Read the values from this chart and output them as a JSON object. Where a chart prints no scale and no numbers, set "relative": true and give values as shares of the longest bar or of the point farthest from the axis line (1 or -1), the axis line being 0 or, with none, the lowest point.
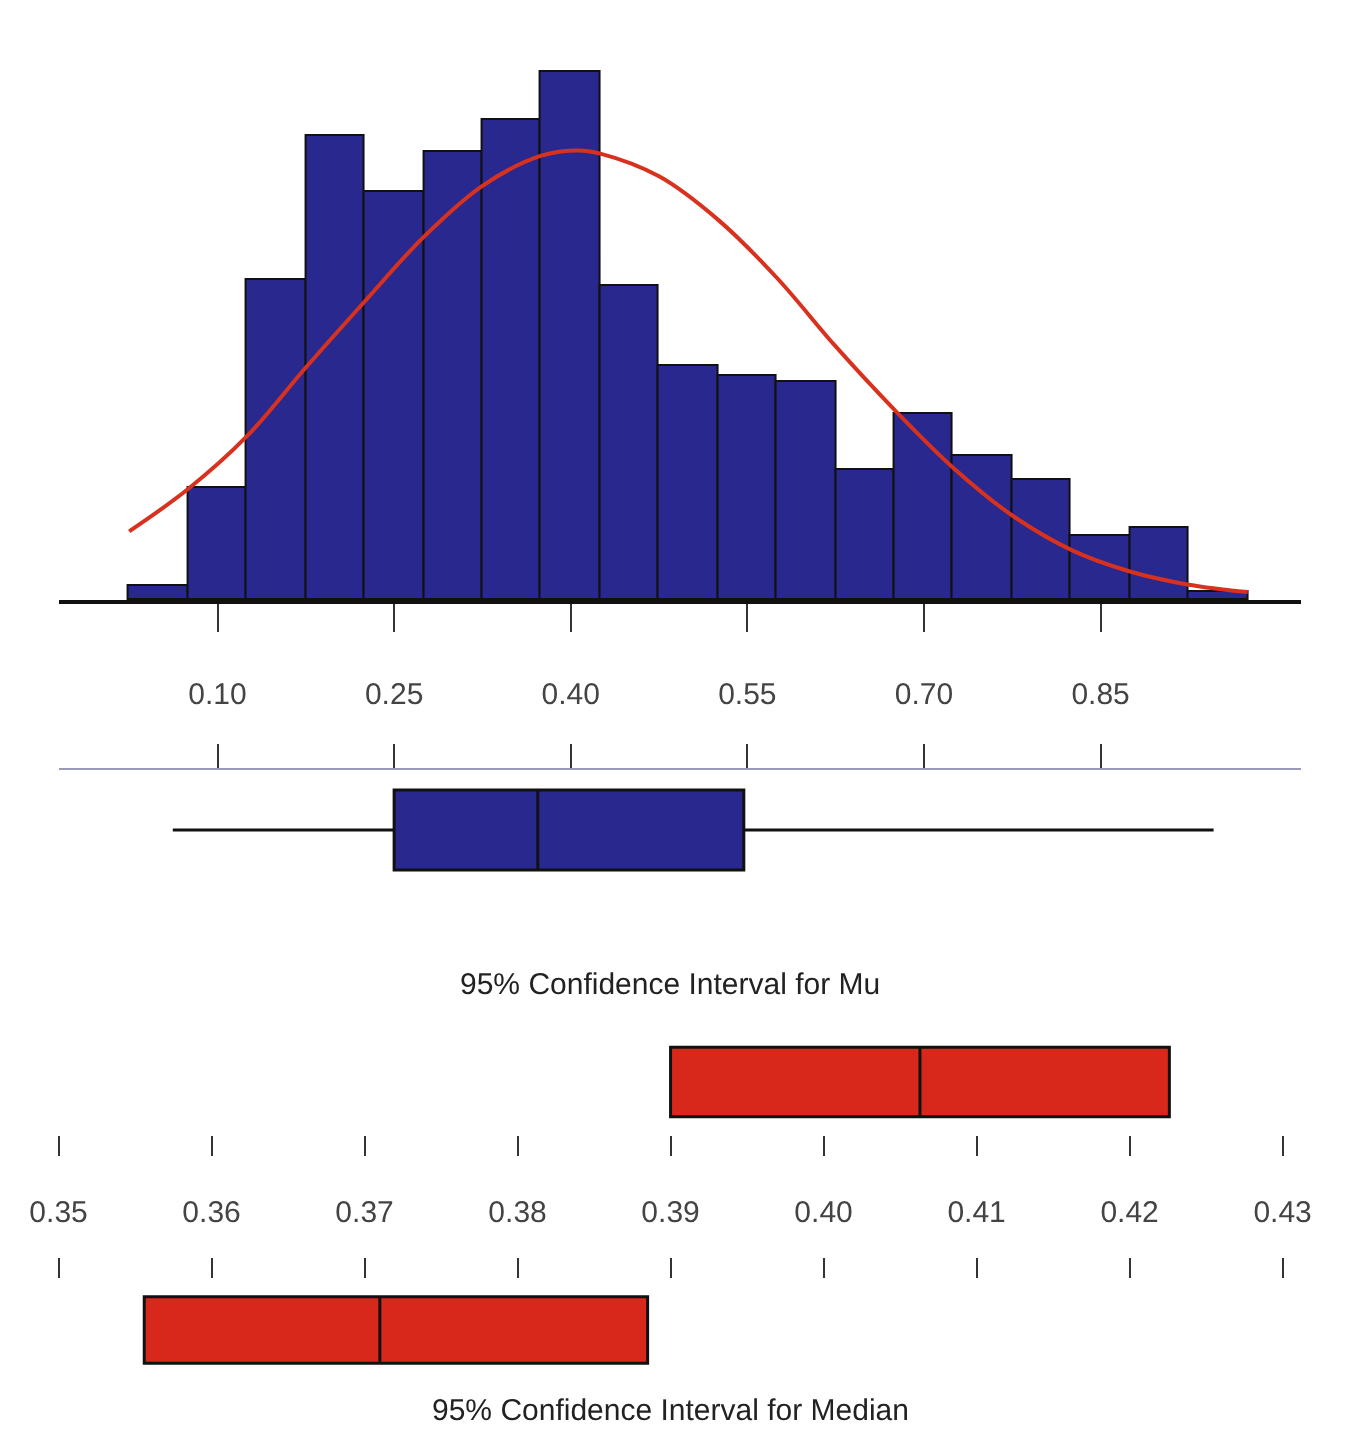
{
  "chart_data": [
    {
      "type": "histogram",
      "relative": true,
      "color": "#28288f",
      "tick_labels": false,
      "bins": [
        0.025,
        0.075,
        0.125,
        0.175,
        0.225,
        0.275,
        0.325,
        0.375,
        0.425,
        0.475,
        0.525,
        0.575,
        0.625,
        0.675,
        0.725,
        0.775,
        0.825,
        0.875,
        0.925,
        0.975
      ],
      "values": [
        0.026,
        0.212,
        0.605,
        0.879,
        0.774,
        0.847,
        0.91,
        1.0,
        0.594,
        0.443,
        0.425,
        0.411,
        0.247,
        0.353,
        0.273,
        0.229,
        0.121,
        0.136,
        0.017
      ],
      "series": [
        {
          "type": "line",
          "color": "#d8321e",
          "x": [
            0.025,
            0.075,
            0.125,
            0.175,
            0.225,
            0.275,
            0.325,
            0.375,
            0.406,
            0.425,
            0.475,
            0.525,
            0.575,
            0.625,
            0.675,
            0.725,
            0.775,
            0.825,
            0.875,
            0.925,
            0.975
          ],
          "values": [
            0.13,
            0.21,
            0.31,
            0.44,
            0.565,
            0.687,
            0.784,
            0.841,
            0.851,
            0.845,
            0.802,
            0.72,
            0.61,
            0.48,
            0.36,
            0.25,
            0.16,
            0.095,
            0.054,
            0.029,
            0.015
          ]
        }
      ],
      "xlim": [
        -0.035,
        1.02
      ],
      "xticks": [
        {
          "value": 0.1,
          "label": null
        },
        {
          "value": 0.25,
          "label": null
        },
        {
          "value": 0.4,
          "label": null
        },
        {
          "value": 0.55,
          "label": null
        },
        {
          "value": 0.7,
          "label": null
        },
        {
          "value": 0.85,
          "label": null
        }
      ]
    },
    {
      "type": "box",
      "orientation": "horizontal",
      "color": "#28288f",
      "boxes": [
        {
          "low": 0.062,
          "q1": 0.25,
          "median": 0.372,
          "q3": 0.547,
          "high": 0.946
        }
      ],
      "xlim": [
        -0.035,
        1.02
      ],
      "xticks": [
        {
          "value": 0.1,
          "label": "0.10"
        },
        {
          "value": 0.25,
          "label": "0.25"
        },
        {
          "value": 0.4,
          "label": "0.40"
        },
        {
          "value": 0.55,
          "label": "0.55"
        },
        {
          "value": 0.7,
          "label": "0.70"
        },
        {
          "value": 0.85,
          "label": "0.85"
        }
      ]
    },
    {
      "type": "box",
      "orientation": "horizontal",
      "color": "#d8281c",
      "title": "95% Confidence Interval for Mu",
      "tick_labels": false,
      "boxes": [
        {
          "low": 0.39,
          "q1": 0.39,
          "median": 0.4063,
          "q3": 0.4226,
          "high": 0.4226
        }
      ],
      "xlim": [
        0.35,
        0.43
      ],
      "xticks": [
        {
          "value": 0.35,
          "label": null
        },
        {
          "value": 0.36,
          "label": null
        },
        {
          "value": 0.37,
          "label": null
        },
        {
          "value": 0.38,
          "label": null
        },
        {
          "value": 0.39,
          "label": null
        },
        {
          "value": 0.4,
          "label": null
        },
        {
          "value": 0.41,
          "label": null
        },
        {
          "value": 0.42,
          "label": null
        },
        {
          "value": 0.43,
          "label": null
        }
      ]
    },
    {
      "type": "box",
      "orientation": "horizontal",
      "color": "#d8281c",
      "title": "95% Confidence Interval for Median",
      "boxes": [
        {
          "low": 0.3556,
          "q1": 0.3556,
          "median": 0.371,
          "q3": 0.3885,
          "high": 0.3885
        }
      ],
      "xlim": [
        0.35,
        0.43
      ],
      "xticks": [
        {
          "value": 0.35,
          "label": "0.35"
        },
        {
          "value": 0.36,
          "label": "0.36"
        },
        {
          "value": 0.37,
          "label": "0.37"
        },
        {
          "value": 0.38,
          "label": "0.38"
        },
        {
          "value": 0.39,
          "label": "0.39"
        },
        {
          "value": 0.4,
          "label": "0.40"
        },
        {
          "value": 0.41,
          "label": "0.41"
        },
        {
          "value": 0.42,
          "label": "0.42"
        },
        {
          "value": 0.43,
          "label": "0.43"
        }
      ]
    }
  ]
}
